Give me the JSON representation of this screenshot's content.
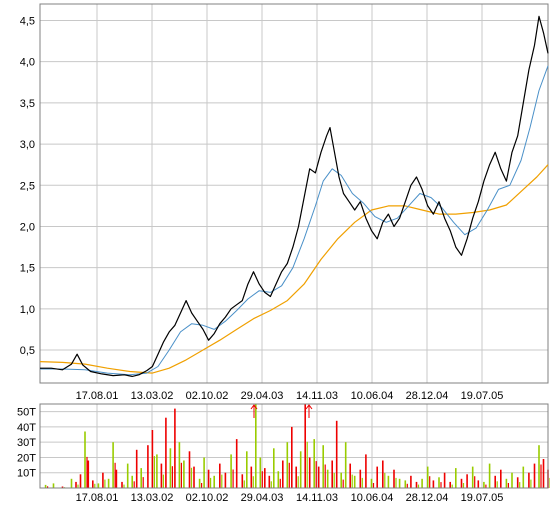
{
  "chart_data": [
    {
      "type": "line",
      "title": "",
      "xlabel": "",
      "ylabel": "",
      "x_ticks": [
        "17.08.01",
        "13.03.02",
        "02.10.02",
        "29.04.03",
        "14.11.03",
        "10.06.04",
        "28.12.04",
        "19.07.05"
      ],
      "y_ticks": [
        "0,5",
        "1,0",
        "1,5",
        "2,0",
        "2,5",
        "3,0",
        "3,5",
        "4,0",
        "4,5"
      ],
      "ylim": [
        0.1,
        4.7
      ],
      "grid": true,
      "colors": {
        "price": "#000000",
        "ma_short": "#4a90c8",
        "ma_long": "#f0a000"
      },
      "series": [
        {
          "key": "price",
          "points": [
            [
              0,
              0.28
            ],
            [
              10,
              0.28
            ],
            [
              20,
              0.26
            ],
            [
              28,
              0.33
            ],
            [
              33,
              0.45
            ],
            [
              38,
              0.32
            ],
            [
              45,
              0.24
            ],
            [
              55,
              0.21
            ],
            [
              65,
              0.19
            ],
            [
              75,
              0.2
            ],
            [
              82,
              0.18
            ],
            [
              88,
              0.2
            ],
            [
              95,
              0.25
            ],
            [
              100,
              0.3
            ],
            [
              105,
              0.45
            ],
            [
              110,
              0.6
            ],
            [
              115,
              0.72
            ],
            [
              120,
              0.8
            ],
            [
              125,
              0.95
            ],
            [
              130,
              1.1
            ],
            [
              135,
              0.95
            ],
            [
              140,
              0.85
            ],
            [
              145,
              0.75
            ],
            [
              150,
              0.62
            ],
            [
              155,
              0.7
            ],
            [
              160,
              0.82
            ],
            [
              165,
              0.9
            ],
            [
              170,
              1.0
            ],
            [
              175,
              1.05
            ],
            [
              180,
              1.1
            ],
            [
              185,
              1.3
            ],
            [
              190,
              1.45
            ],
            [
              195,
              1.3
            ],
            [
              200,
              1.2
            ],
            [
              205,
              1.15
            ],
            [
              210,
              1.3
            ],
            [
              215,
              1.45
            ],
            [
              220,
              1.55
            ],
            [
              225,
              1.75
            ],
            [
              230,
              2.0
            ],
            [
              235,
              2.35
            ],
            [
              240,
              2.7
            ],
            [
              245,
              2.65
            ],
            [
              250,
              2.9
            ],
            [
              255,
              3.1
            ],
            [
              258,
              3.2
            ],
            [
              262,
              2.9
            ],
            [
              266,
              2.6
            ],
            [
              270,
              2.4
            ],
            [
              275,
              2.3
            ],
            [
              280,
              2.2
            ],
            [
              285,
              2.3
            ],
            [
              290,
              2.1
            ],
            [
              295,
              1.95
            ],
            [
              300,
              1.85
            ],
            [
              305,
              2.05
            ],
            [
              310,
              2.15
            ],
            [
              315,
              2.0
            ],
            [
              320,
              2.1
            ],
            [
              325,
              2.3
            ],
            [
              330,
              2.5
            ],
            [
              335,
              2.6
            ],
            [
              340,
              2.45
            ],
            [
              345,
              2.25
            ],
            [
              350,
              2.15
            ],
            [
              355,
              2.3
            ],
            [
              360,
              2.1
            ],
            [
              365,
              1.95
            ],
            [
              370,
              1.75
            ],
            [
              375,
              1.65
            ],
            [
              380,
              1.85
            ],
            [
              385,
              2.1
            ],
            [
              390,
              2.3
            ],
            [
              395,
              2.55
            ],
            [
              400,
              2.75
            ],
            [
              405,
              2.9
            ],
            [
              410,
              2.7
            ],
            [
              415,
              2.55
            ],
            [
              420,
              2.9
            ],
            [
              425,
              3.1
            ],
            [
              430,
              3.5
            ],
            [
              435,
              3.9
            ],
            [
              440,
              4.2
            ],
            [
              444,
              4.55
            ],
            [
              448,
              4.35
            ],
            [
              452,
              4.1
            ]
          ]
        },
        {
          "key": "ma_short",
          "points": [
            [
              0,
              0.27
            ],
            [
              20,
              0.27
            ],
            [
              40,
              0.26
            ],
            [
              60,
              0.22
            ],
            [
              80,
              0.2
            ],
            [
              95,
              0.22
            ],
            [
              105,
              0.3
            ],
            [
              115,
              0.5
            ],
            [
              125,
              0.72
            ],
            [
              135,
              0.82
            ],
            [
              145,
              0.8
            ],
            [
              155,
              0.75
            ],
            [
              165,
              0.85
            ],
            [
              175,
              0.98
            ],
            [
              185,
              1.12
            ],
            [
              195,
              1.22
            ],
            [
              205,
              1.2
            ],
            [
              215,
              1.28
            ],
            [
              225,
              1.5
            ],
            [
              235,
              1.85
            ],
            [
              245,
              2.25
            ],
            [
              252,
              2.55
            ],
            [
              260,
              2.7
            ],
            [
              268,
              2.62
            ],
            [
              278,
              2.4
            ],
            [
              288,
              2.28
            ],
            [
              298,
              2.12
            ],
            [
              308,
              2.05
            ],
            [
              318,
              2.1
            ],
            [
              328,
              2.25
            ],
            [
              338,
              2.4
            ],
            [
              348,
              2.35
            ],
            [
              358,
              2.22
            ],
            [
              368,
              2.05
            ],
            [
              378,
              1.9
            ],
            [
              388,
              1.98
            ],
            [
              398,
              2.2
            ],
            [
              408,
              2.45
            ],
            [
              418,
              2.5
            ],
            [
              428,
              2.8
            ],
            [
              436,
              3.2
            ],
            [
              444,
              3.65
            ],
            [
              452,
              3.95
            ]
          ]
        },
        {
          "key": "ma_long",
          "points": [
            [
              0,
              0.36
            ],
            [
              20,
              0.35
            ],
            [
              40,
              0.33
            ],
            [
              60,
              0.28
            ],
            [
              80,
              0.24
            ],
            [
              100,
              0.22
            ],
            [
              115,
              0.28
            ],
            [
              130,
              0.38
            ],
            [
              145,
              0.5
            ],
            [
              160,
              0.62
            ],
            [
              175,
              0.75
            ],
            [
              190,
              0.88
            ],
            [
              205,
              0.98
            ],
            [
              220,
              1.1
            ],
            [
              235,
              1.3
            ],
            [
              250,
              1.6
            ],
            [
              265,
              1.85
            ],
            [
              280,
              2.05
            ],
            [
              295,
              2.2
            ],
            [
              310,
              2.25
            ],
            [
              325,
              2.25
            ],
            [
              340,
              2.2
            ],
            [
              355,
              2.15
            ],
            [
              370,
              2.15
            ],
            [
              385,
              2.17
            ],
            [
              400,
              2.2
            ],
            [
              415,
              2.26
            ],
            [
              430,
              2.45
            ],
            [
              442,
              2.6
            ],
            [
              452,
              2.75
            ]
          ]
        }
      ]
    },
    {
      "type": "bar",
      "title": "",
      "xlabel": "",
      "ylabel": "",
      "x_ticks": [
        "17.08.01",
        "13.03.02",
        "02.10.02",
        "29.04.03",
        "14.11.03",
        "10.06.04",
        "28.12.04",
        "19.07.05"
      ],
      "y_ticks": [
        "10T",
        "20T",
        "30T",
        "40T",
        "50T"
      ],
      "ylim": [
        0,
        55
      ],
      "grid": true,
      "colors": {
        "up": "#99cc00",
        "down": "#ee0000"
      },
      "clipped_markers": [
        {
          "date": "29.04.03",
          "value_exceeds": 55
        },
        {
          "date": "14.11.03",
          "value_exceeds": 55
        }
      ],
      "series": [
        {
          "key": "volume",
          "points": [
            [
              5,
              2
            ],
            [
              12,
              3
            ],
            [
              20,
              1
            ],
            [
              28,
              6
            ],
            [
              32,
              4
            ],
            [
              36,
              9
            ],
            [
              40,
              37
            ],
            [
              43,
              18
            ],
            [
              47,
              5
            ],
            [
              52,
              3
            ],
            [
              56,
              10
            ],
            [
              61,
              6
            ],
            [
              65,
              30
            ],
            [
              68,
              12
            ],
            [
              73,
              4
            ],
            [
              78,
              16
            ],
            [
              82,
              8
            ],
            [
              86,
              25
            ],
            [
              90,
              13
            ],
            [
              96,
              28
            ],
            [
              100,
              38
            ],
            [
              104,
              22
            ],
            [
              108,
              16
            ],
            [
              112,
              46
            ],
            [
              116,
              26
            ],
            [
              120,
              52
            ],
            [
              124,
              30
            ],
            [
              128,
              18
            ],
            [
              133,
              24
            ],
            [
              137,
              14
            ],
            [
              142,
              6
            ],
            [
              146,
              20
            ],
            [
              150,
              12
            ],
            [
              155,
              8
            ],
            [
              160,
              16
            ],
            [
              165,
              10
            ],
            [
              170,
              22
            ],
            [
              175,
              32
            ],
            [
              180,
              9
            ],
            [
              184,
              24
            ],
            [
              188,
              14
            ],
            [
              192,
              55
            ],
            [
              196,
              20
            ],
            [
              200,
              13
            ],
            [
              204,
              8
            ],
            [
              208,
              26
            ],
            [
              212,
              11
            ],
            [
              216,
              18
            ],
            [
              220,
              30
            ],
            [
              224,
              40
            ],
            [
              228,
              14
            ],
            [
              232,
              24
            ],
            [
              236,
              55
            ],
            [
              240,
              20
            ],
            [
              244,
              32
            ],
            [
              248,
              14
            ],
            [
              252,
              28
            ],
            [
              256,
              12
            ],
            [
              260,
              18
            ],
            [
              264,
              44
            ],
            [
              268,
              10
            ],
            [
              272,
              30
            ],
            [
              276,
              16
            ],
            [
              280,
              8
            ],
            [
              285,
              12
            ],
            [
              290,
              22
            ],
            [
              295,
              6
            ],
            [
              300,
              14
            ],
            [
              305,
              18
            ],
            [
              310,
              8
            ],
            [
              315,
              12
            ],
            [
              320,
              6
            ],
            [
              325,
              5
            ],
            [
              330,
              8
            ],
            [
              335,
              4
            ],
            [
              340,
              6
            ],
            [
              345,
              14
            ],
            [
              350,
              5
            ],
            [
              355,
              7
            ],
            [
              360,
              10
            ],
            [
              365,
              4
            ],
            [
              370,
              13
            ],
            [
              375,
              6
            ],
            [
              380,
              9
            ],
            [
              385,
              14
            ],
            [
              390,
              5
            ],
            [
              395,
              4
            ],
            [
              400,
              16
            ],
            [
              405,
              8
            ],
            [
              410,
              12
            ],
            [
              415,
              6
            ],
            [
              420,
              10
            ],
            [
              425,
              7
            ],
            [
              430,
              14
            ],
            [
              435,
              10
            ],
            [
              440,
              16
            ],
            [
              444,
              28
            ],
            [
              448,
              19
            ],
            [
              452,
              12
            ]
          ]
        }
      ]
    }
  ]
}
